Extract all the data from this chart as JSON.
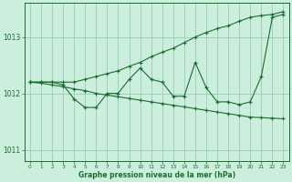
{
  "xlabel": "Graphe pression niveau de la mer (hPa)",
  "bg_color": "#cceedd",
  "plot_bg_color": "#cceedd",
  "grid_color": "#99ccbb",
  "line_color": "#1a6e2e",
  "hours": [
    0,
    1,
    2,
    3,
    4,
    5,
    6,
    7,
    8,
    9,
    10,
    11,
    12,
    13,
    14,
    15,
    16,
    17,
    18,
    19,
    20,
    21,
    22,
    23
  ],
  "data_line": [
    1012.2,
    1012.2,
    1012.2,
    1012.15,
    1011.9,
    1011.75,
    1011.75,
    1012.0,
    1012.0,
    1012.25,
    1012.45,
    1012.25,
    1012.2,
    1011.95,
    1011.95,
    1012.55,
    1012.1,
    1011.85,
    1011.85,
    1011.8,
    1011.85,
    1012.3,
    1013.35,
    1013.4
  ],
  "upper_trend": [
    1012.2,
    1012.2,
    1012.2,
    1012.2,
    1012.2,
    1012.25,
    1012.3,
    1012.35,
    1012.4,
    1012.48,
    1012.55,
    1012.65,
    1012.73,
    1012.8,
    1012.9,
    1013.0,
    1013.08,
    1013.15,
    1013.2,
    1013.28,
    1013.35,
    1013.38,
    1013.4,
    1013.45
  ],
  "lower_trend": [
    1012.2,
    1012.18,
    1012.15,
    1012.12,
    1012.08,
    1012.05,
    1012.0,
    1011.97,
    1011.94,
    1011.91,
    1011.88,
    1011.85,
    1011.82,
    1011.79,
    1011.76,
    1011.73,
    1011.7,
    1011.67,
    1011.64,
    1011.61,
    1011.58,
    1011.57,
    1011.56,
    1011.55
  ],
  "ylim": [
    1010.8,
    1013.6
  ],
  "yticks": [
    1011,
    1012,
    1013
  ],
  "xlim": [
    -0.5,
    23.5
  ]
}
